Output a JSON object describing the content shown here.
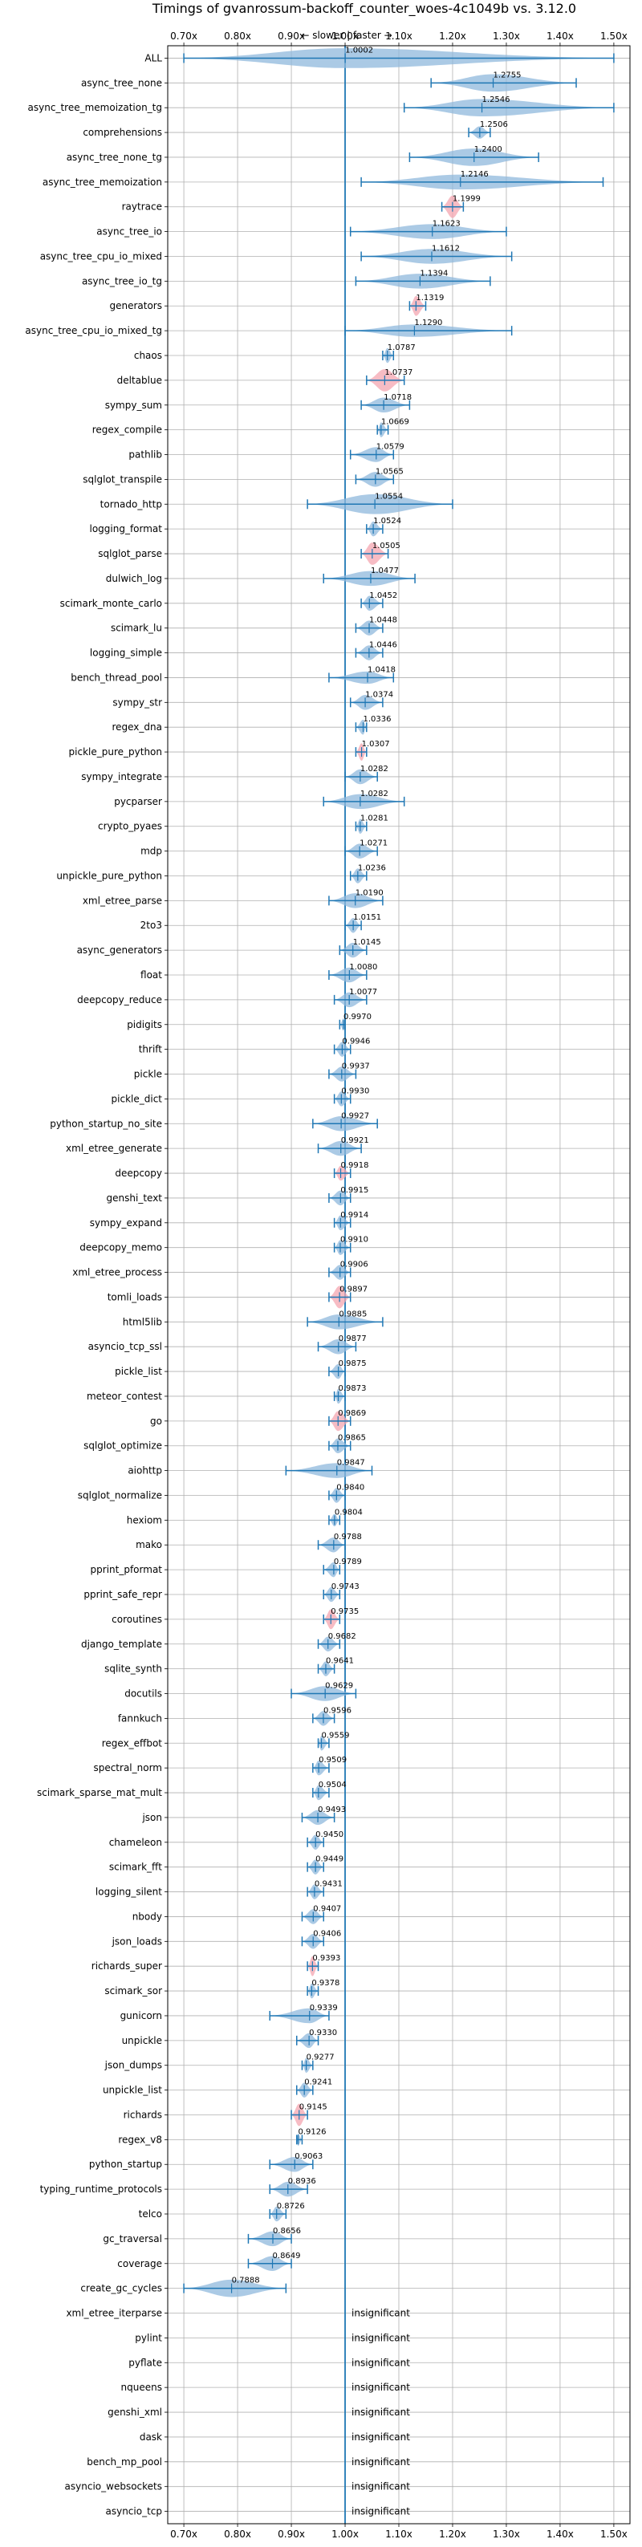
{
  "chart_data": {
    "type": "violin",
    "title": "Timings of gvanrossum-backoff_counter_woes-4c1049b vs. 3.12.0",
    "subtitle": "← slower | faster →",
    "x_ticks": [
      0.7,
      0.8,
      0.9,
      1.0,
      1.1,
      1.2,
      1.3,
      1.4,
      1.5
    ],
    "x_tick_labels": [
      "0.70x",
      "0.80x",
      "0.90x",
      "1.00x",
      "1.10x",
      "1.20x",
      "1.30x",
      "1.40x",
      "1.50x"
    ],
    "xlim": [
      0.67,
      1.53
    ],
    "grid": true,
    "reference_line": 1.0,
    "colors": {
      "violin": "#8fb8dc",
      "highlight": "#f4a6b0",
      "line": "#1f77b4",
      "grid": "#b0b0b0"
    },
    "benchmarks": [
      {
        "name": "ALL",
        "value": 1.0002,
        "label": "1.0002",
        "min": 0.7,
        "max": 1.5,
        "width": 0.08
      },
      {
        "name": "async_tree_none",
        "value": 1.2755,
        "label": "1.2755",
        "min": 1.16,
        "max": 1.43,
        "width": 0.07
      },
      {
        "name": "async_tree_memoization_tg",
        "value": 1.2546,
        "label": "1.2546",
        "min": 1.11,
        "max": 1.5,
        "width": 0.07
      },
      {
        "name": "comprehensions",
        "value": 1.2506,
        "label": "1.2506",
        "min": 1.23,
        "max": 1.27,
        "width": 0.05
      },
      {
        "name": "async_tree_none_tg",
        "value": 1.24,
        "label": "1.2400",
        "min": 1.12,
        "max": 1.36,
        "width": 0.07
      },
      {
        "name": "async_tree_memoization",
        "value": 1.2146,
        "label": "1.2146",
        "min": 1.03,
        "max": 1.48,
        "width": 0.06
      },
      {
        "name": "raytrace",
        "value": 1.1999,
        "label": "1.1999",
        "min": 1.18,
        "max": 1.22,
        "width": 0.09,
        "highlight": true
      },
      {
        "name": "async_tree_io",
        "value": 1.1623,
        "label": "1.1623",
        "min": 1.01,
        "max": 1.3,
        "width": 0.06
      },
      {
        "name": "async_tree_cpu_io_mixed",
        "value": 1.1612,
        "label": "1.1612",
        "min": 1.03,
        "max": 1.31,
        "width": 0.06
      },
      {
        "name": "async_tree_io_tg",
        "value": 1.1394,
        "label": "1.1394",
        "min": 1.02,
        "max": 1.27,
        "width": 0.06
      },
      {
        "name": "generators",
        "value": 1.1319,
        "label": "1.1319",
        "min": 1.12,
        "max": 1.15,
        "width": 0.08,
        "highlight": true
      },
      {
        "name": "async_tree_cpu_io_mixed_tg",
        "value": 1.129,
        "label": "1.1290",
        "min": 1.0,
        "max": 1.31,
        "width": 0.05
      },
      {
        "name": "chaos",
        "value": 1.0787,
        "label": "1.0787",
        "min": 1.07,
        "max": 1.09,
        "width": 0.06
      },
      {
        "name": "deltablue",
        "value": 1.0737,
        "label": "1.0737",
        "min": 1.04,
        "max": 1.11,
        "width": 0.2,
        "highlight": true
      },
      {
        "name": "sympy_sum",
        "value": 1.0718,
        "label": "1.0718",
        "min": 1.03,
        "max": 1.12,
        "width": 0.06
      },
      {
        "name": "regex_compile",
        "value": 1.0669,
        "label": "1.0669",
        "min": 1.06,
        "max": 1.08,
        "width": 0.06
      },
      {
        "name": "pathlib",
        "value": 1.0579,
        "label": "1.0579",
        "min": 1.01,
        "max": 1.09,
        "width": 0.06
      },
      {
        "name": "sqlglot_transpile",
        "value": 1.0565,
        "label": "1.0565",
        "min": 1.02,
        "max": 1.09,
        "width": 0.06
      },
      {
        "name": "tornado_http",
        "value": 1.0554,
        "label": "1.0554",
        "min": 0.93,
        "max": 1.2,
        "width": 0.08
      },
      {
        "name": "logging_format",
        "value": 1.0524,
        "label": "1.0524",
        "min": 1.04,
        "max": 1.07,
        "width": 0.06
      },
      {
        "name": "sqlglot_parse",
        "value": 1.0505,
        "label": "1.0505",
        "min": 1.03,
        "max": 1.08,
        "width": 0.2,
        "highlight": true
      },
      {
        "name": "dulwich_log",
        "value": 1.0477,
        "label": "1.0477",
        "min": 0.96,
        "max": 1.13,
        "width": 0.06
      },
      {
        "name": "scimark_monte_carlo",
        "value": 1.0452,
        "label": "1.0452",
        "min": 1.03,
        "max": 1.07,
        "width": 0.06
      },
      {
        "name": "scimark_lu",
        "value": 1.0448,
        "label": "1.0448",
        "min": 1.02,
        "max": 1.07,
        "width": 0.06
      },
      {
        "name": "logging_simple",
        "value": 1.0446,
        "label": "1.0446",
        "min": 1.02,
        "max": 1.07,
        "width": 0.06
      },
      {
        "name": "bench_thread_pool",
        "value": 1.0418,
        "label": "1.0418",
        "min": 0.97,
        "max": 1.09,
        "width": 0.05
      },
      {
        "name": "sympy_str",
        "value": 1.0374,
        "label": "1.0374",
        "min": 1.01,
        "max": 1.07,
        "width": 0.06
      },
      {
        "name": "regex_dna",
        "value": 1.0336,
        "label": "1.0336",
        "min": 1.02,
        "max": 1.04,
        "width": 0.06
      },
      {
        "name": "pickle_pure_python",
        "value": 1.0307,
        "label": "1.0307",
        "min": 1.02,
        "max": 1.04,
        "width": 0.07,
        "highlight": true
      },
      {
        "name": "sympy_integrate",
        "value": 1.0282,
        "label": "1.0282",
        "min": 1.0,
        "max": 1.06,
        "width": 0.06
      },
      {
        "name": "pycparser",
        "value": 1.0282,
        "label": "1.0282",
        "min": 0.96,
        "max": 1.11,
        "width": 0.06
      },
      {
        "name": "crypto_pyaes",
        "value": 1.0281,
        "label": "1.0281",
        "min": 1.02,
        "max": 1.04,
        "width": 0.06
      },
      {
        "name": "mdp",
        "value": 1.0271,
        "label": "1.0271",
        "min": 1.0,
        "max": 1.06,
        "width": 0.06
      },
      {
        "name": "unpickle_pure_python",
        "value": 1.0236,
        "label": "1.0236",
        "min": 1.01,
        "max": 1.04,
        "width": 0.06
      },
      {
        "name": "xml_etree_parse",
        "value": 1.019,
        "label": "1.0190",
        "min": 0.97,
        "max": 1.07,
        "width": 0.06
      },
      {
        "name": "2to3",
        "value": 1.0151,
        "label": "1.0151",
        "min": 1.0,
        "max": 1.03,
        "width": 0.06
      },
      {
        "name": "async_generators",
        "value": 1.0145,
        "label": "1.0145",
        "min": 0.99,
        "max": 1.04,
        "width": 0.06
      },
      {
        "name": "float",
        "value": 1.008,
        "label": "1.0080",
        "min": 0.97,
        "max": 1.04,
        "width": 0.06
      },
      {
        "name": "deepcopy_reduce",
        "value": 1.0077,
        "label": "1.0077",
        "min": 0.98,
        "max": 1.04,
        "width": 0.06
      },
      {
        "name": "pidigits",
        "value": 0.997,
        "label": "0.9970",
        "min": 0.99,
        "max": 1.0,
        "width": 0.05
      },
      {
        "name": "thrift",
        "value": 0.9946,
        "label": "0.9946",
        "min": 0.98,
        "max": 1.01,
        "width": 0.06
      },
      {
        "name": "pickle",
        "value": 0.9937,
        "label": "0.9937",
        "min": 0.97,
        "max": 1.02,
        "width": 0.06
      },
      {
        "name": "pickle_dict",
        "value": 0.993,
        "label": "0.9930",
        "min": 0.98,
        "max": 1.01,
        "width": 0.06
      },
      {
        "name": "python_startup_no_site",
        "value": 0.9927,
        "label": "0.9927",
        "min": 0.94,
        "max": 1.06,
        "width": 0.06
      },
      {
        "name": "xml_etree_generate",
        "value": 0.9921,
        "label": "0.9921",
        "min": 0.95,
        "max": 1.03,
        "width": 0.06
      },
      {
        "name": "deepcopy",
        "value": 0.9918,
        "label": "0.9918",
        "min": 0.98,
        "max": 1.01,
        "width": 0.06,
        "highlight": true
      },
      {
        "name": "genshi_text",
        "value": 0.9915,
        "label": "0.9915",
        "min": 0.97,
        "max": 1.01,
        "width": 0.06
      },
      {
        "name": "sympy_expand",
        "value": 0.9914,
        "label": "0.9914",
        "min": 0.98,
        "max": 1.01,
        "width": 0.06
      },
      {
        "name": "deepcopy_memo",
        "value": 0.991,
        "label": "0.9910",
        "min": 0.98,
        "max": 1.01,
        "width": 0.06
      },
      {
        "name": "xml_etree_process",
        "value": 0.9906,
        "label": "0.9906",
        "min": 0.97,
        "max": 1.01,
        "width": 0.06
      },
      {
        "name": "tomli_loads",
        "value": 0.9897,
        "label": "0.9897",
        "min": 0.97,
        "max": 1.01,
        "width": 0.09,
        "highlight": true
      },
      {
        "name": "html5lib",
        "value": 0.9885,
        "label": "0.9885",
        "min": 0.93,
        "max": 1.07,
        "width": 0.06
      },
      {
        "name": "asyncio_tcp_ssl",
        "value": 0.9877,
        "label": "0.9877",
        "min": 0.95,
        "max": 1.02,
        "width": 0.06
      },
      {
        "name": "pickle_list",
        "value": 0.9875,
        "label": "0.9875",
        "min": 0.97,
        "max": 1.0,
        "width": 0.06
      },
      {
        "name": "meteor_contest",
        "value": 0.9873,
        "label": "0.9873",
        "min": 0.98,
        "max": 1.0,
        "width": 0.06
      },
      {
        "name": "go",
        "value": 0.9869,
        "label": "0.9869",
        "min": 0.97,
        "max": 1.01,
        "width": 0.08,
        "highlight": true
      },
      {
        "name": "sqlglot_optimize",
        "value": 0.9865,
        "label": "0.9865",
        "min": 0.97,
        "max": 1.01,
        "width": 0.06
      },
      {
        "name": "aiohttp",
        "value": 0.9847,
        "label": "0.9847",
        "min": 0.89,
        "max": 1.05,
        "width": 0.06
      },
      {
        "name": "sqlglot_normalize",
        "value": 0.984,
        "label": "0.9840",
        "min": 0.97,
        "max": 1.0,
        "width": 0.06
      },
      {
        "name": "hexiom",
        "value": 0.9804,
        "label": "0.9804",
        "min": 0.97,
        "max": 0.99,
        "width": 0.05
      },
      {
        "name": "mako",
        "value": 0.9788,
        "label": "0.9788",
        "min": 0.95,
        "max": 1.0,
        "width": 0.06
      },
      {
        "name": "pprint_pformat",
        "value": 0.9789,
        "label": "0.9789",
        "min": 0.96,
        "max": 0.99,
        "width": 0.06
      },
      {
        "name": "pprint_safe_repr",
        "value": 0.9743,
        "label": "0.9743",
        "min": 0.96,
        "max": 0.99,
        "width": 0.06
      },
      {
        "name": "coroutines",
        "value": 0.9735,
        "label": "0.9735",
        "min": 0.96,
        "max": 0.99,
        "width": 0.08,
        "highlight": true
      },
      {
        "name": "django_template",
        "value": 0.9682,
        "label": "0.9682",
        "min": 0.95,
        "max": 0.99,
        "width": 0.06
      },
      {
        "name": "sqlite_synth",
        "value": 0.9641,
        "label": "0.9641",
        "min": 0.95,
        "max": 0.98,
        "width": 0.06
      },
      {
        "name": "docutils",
        "value": 0.9629,
        "label": "0.9629",
        "min": 0.9,
        "max": 1.02,
        "width": 0.06
      },
      {
        "name": "fannkuch",
        "value": 0.9596,
        "label": "0.9596",
        "min": 0.94,
        "max": 0.98,
        "width": 0.06
      },
      {
        "name": "regex_effbot",
        "value": 0.9559,
        "label": "0.9559",
        "min": 0.95,
        "max": 0.97,
        "width": 0.06
      },
      {
        "name": "spectral_norm",
        "value": 0.9509,
        "label": "0.9509",
        "min": 0.94,
        "max": 0.97,
        "width": 0.06
      },
      {
        "name": "scimark_sparse_mat_mult",
        "value": 0.9504,
        "label": "0.9504",
        "min": 0.94,
        "max": 0.97,
        "width": 0.06
      },
      {
        "name": "json",
        "value": 0.9493,
        "label": "0.9493",
        "min": 0.92,
        "max": 0.98,
        "width": 0.06
      },
      {
        "name": "chameleon",
        "value": 0.945,
        "label": "0.9450",
        "min": 0.93,
        "max": 0.96,
        "width": 0.06
      },
      {
        "name": "scimark_fft",
        "value": 0.9449,
        "label": "0.9449",
        "min": 0.93,
        "max": 0.96,
        "width": 0.06
      },
      {
        "name": "logging_silent",
        "value": 0.9431,
        "label": "0.9431",
        "min": 0.93,
        "max": 0.96,
        "width": 0.06
      },
      {
        "name": "nbody",
        "value": 0.9407,
        "label": "0.9407",
        "min": 0.92,
        "max": 0.96,
        "width": 0.06
      },
      {
        "name": "json_loads",
        "value": 0.9406,
        "label": "0.9406",
        "min": 0.92,
        "max": 0.96,
        "width": 0.06
      },
      {
        "name": "richards_super",
        "value": 0.9393,
        "label": "0.9393",
        "min": 0.93,
        "max": 0.95,
        "width": 0.08,
        "highlight": true
      },
      {
        "name": "scimark_sor",
        "value": 0.9378,
        "label": "0.9378",
        "min": 0.93,
        "max": 0.95,
        "width": 0.06
      },
      {
        "name": "gunicorn",
        "value": 0.9339,
        "label": "0.9339",
        "min": 0.86,
        "max": 0.97,
        "width": 0.06
      },
      {
        "name": "unpickle",
        "value": 0.933,
        "label": "0.9330",
        "min": 0.91,
        "max": 0.95,
        "width": 0.06
      },
      {
        "name": "json_dumps",
        "value": 0.9277,
        "label": "0.9277",
        "min": 0.92,
        "max": 0.94,
        "width": 0.06
      },
      {
        "name": "unpickle_list",
        "value": 0.9241,
        "label": "0.9241",
        "min": 0.91,
        "max": 0.94,
        "width": 0.06
      },
      {
        "name": "richards",
        "value": 0.9145,
        "label": "0.9145",
        "min": 0.9,
        "max": 0.93,
        "width": 0.09,
        "highlight": true
      },
      {
        "name": "regex_v8",
        "value": 0.9126,
        "label": "0.9126",
        "min": 0.91,
        "max": 0.92,
        "width": 0.05
      },
      {
        "name": "python_startup",
        "value": 0.9063,
        "label": "0.9063",
        "min": 0.86,
        "max": 0.94,
        "width": 0.06
      },
      {
        "name": "typing_runtime_protocols",
        "value": 0.8936,
        "label": "0.8936",
        "min": 0.86,
        "max": 0.93,
        "width": 0.06
      },
      {
        "name": "telco",
        "value": 0.8726,
        "label": "0.8726",
        "min": 0.86,
        "max": 0.89,
        "width": 0.06
      },
      {
        "name": "gc_traversal",
        "value": 0.8656,
        "label": "0.8656",
        "min": 0.82,
        "max": 0.9,
        "width": 0.06
      },
      {
        "name": "coverage",
        "value": 0.8649,
        "label": "0.8649",
        "min": 0.82,
        "max": 0.9,
        "width": 0.06
      },
      {
        "name": "create_gc_cycles",
        "value": 0.7888,
        "label": "0.7888",
        "min": 0.7,
        "max": 0.89,
        "width": 0.07
      },
      {
        "name": "xml_etree_iterparse",
        "label": "insignificant"
      },
      {
        "name": "pylint",
        "label": "insignificant"
      },
      {
        "name": "pyflate",
        "label": "insignificant"
      },
      {
        "name": "nqueens",
        "label": "insignificant"
      },
      {
        "name": "genshi_xml",
        "label": "insignificant"
      },
      {
        "name": "dask",
        "label": "insignificant"
      },
      {
        "name": "bench_mp_pool",
        "label": "insignificant"
      },
      {
        "name": "asyncio_websockets",
        "label": "insignificant"
      },
      {
        "name": "asyncio_tcp",
        "label": "insignificant"
      }
    ]
  }
}
